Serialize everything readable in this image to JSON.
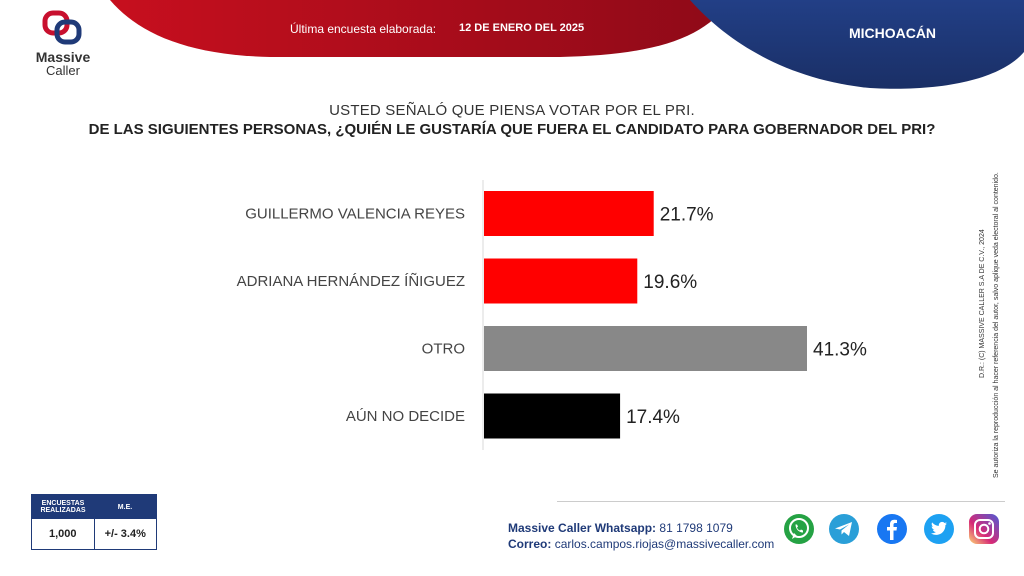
{
  "brand": {
    "line1": "Massive",
    "line2": "Caller"
  },
  "header": {
    "label": "Última encuesta elaborada:",
    "date": "12 DE ENERO DEL 2025",
    "state": "MICHOACÁN"
  },
  "subtitle": "USTED SEÑALÓ QUE PIENSA VOTAR POR EL PRI.",
  "title": "DE LAS SIGUIENTES PERSONAS, ¿QUIÉN LE GUSTARÍA QUE FUERA EL CANDIDATO PARA GOBERNADOR DEL PRI?",
  "chart_data": {
    "type": "bar",
    "orientation": "horizontal",
    "categories": [
      "GUILLERMO VALENCIA REYES",
      "ADRIANA HERNÁNDEZ ÍÑIGUEZ",
      "OTRO",
      "AÚN NO DECIDE"
    ],
    "values": [
      21.7,
      19.6,
      41.3,
      17.4
    ],
    "value_labels": [
      "21.7%",
      "19.6%",
      "41.3%",
      "17.4%"
    ],
    "colors": [
      "#ff0000",
      "#ff0000",
      "#888888",
      "#000000"
    ],
    "xlim": [
      0,
      41.3
    ],
    "grid": false
  },
  "stats": {
    "col1_header": "ENCUESTAS REALIZADAS",
    "col2_header": "M.E.",
    "col1_value": "1,000",
    "col2_value": "+/- 3.4%"
  },
  "contact": {
    "whatsapp_label": "Massive Caller Whatsapp:",
    "whatsapp_number": "81 1798 1079",
    "email_label": "Correo:",
    "email": "carlos.campos.riojas@massivecaller.com"
  },
  "disclaimer": {
    "line1": "D.R.: (C) MASSIVE CALLER S.A DE C.V., 2024",
    "line2": "Se autoriza la reproducción al hacer referencia del autor, salvo aplique veda electoral al contenido."
  },
  "social_icons": [
    "whatsapp-icon",
    "telegram-icon",
    "facebook-icon",
    "twitter-icon",
    "instagram-icon"
  ],
  "accent_colors": {
    "red": "#c8102e",
    "navy": "#1f3a78"
  }
}
